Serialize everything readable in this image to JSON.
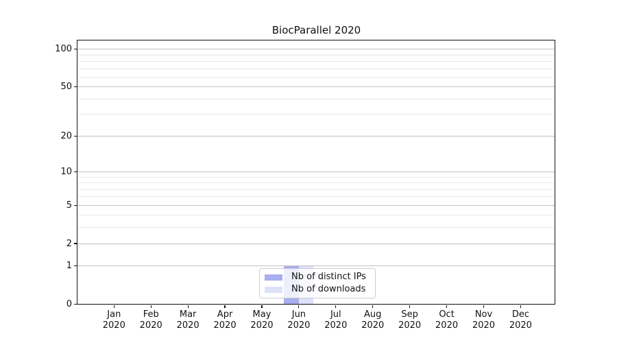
{
  "title": "BiocParallel 2020",
  "legend": {
    "items": [
      {
        "label": "Nb of distinct IPs",
        "swatch_color": "#a9aeee"
      },
      {
        "label": "Nb of downloads",
        "swatch_color": "#dee1fa"
      }
    ]
  },
  "chart_data": {
    "type": "bar",
    "title": "BiocParallel 2020",
    "categories": [
      "Jan 2020",
      "Feb 2020",
      "Mar 2020",
      "Apr 2020",
      "May 2020",
      "Jun 2020",
      "Jul 2020",
      "Aug 2020",
      "Sep 2020",
      "Oct 2020",
      "Nov 2020",
      "Dec 2020"
    ],
    "series": [
      {
        "name": "Nb of distinct IPs",
        "color": "#a9aeee",
        "values": [
          0,
          0,
          0,
          0,
          0,
          1,
          0,
          0,
          0,
          0,
          0,
          0
        ]
      },
      {
        "name": "Nb of downloads",
        "color": "#dee1fa",
        "values": [
          0,
          0,
          0,
          0,
          0,
          1,
          0,
          0,
          0,
          0,
          0,
          0
        ]
      }
    ],
    "yscale": "log1p",
    "ylim": [
      0,
      117
    ],
    "y_major_ticks": [
      0,
      1,
      2,
      5,
      10,
      20,
      50,
      100
    ],
    "y_minor_ticks": [
      3,
      4,
      6,
      7,
      8,
      9,
      30,
      40,
      60,
      70,
      80,
      90
    ],
    "grid": "horizontal, major and minor",
    "legend_position": "lower center, inside axes",
    "bar_layout": "pair side-by-side per month: distinct IPs left, downloads right"
  },
  "colors": {
    "background": "#ffffff",
    "axis": "#111111",
    "grid_major": "#c0c0c0",
    "grid_minor": "#e9e9e9",
    "legend_border": "#cccccc",
    "bar_distinct_ips": "#a9aeee",
    "bar_downloads": "#dee1fa"
  }
}
